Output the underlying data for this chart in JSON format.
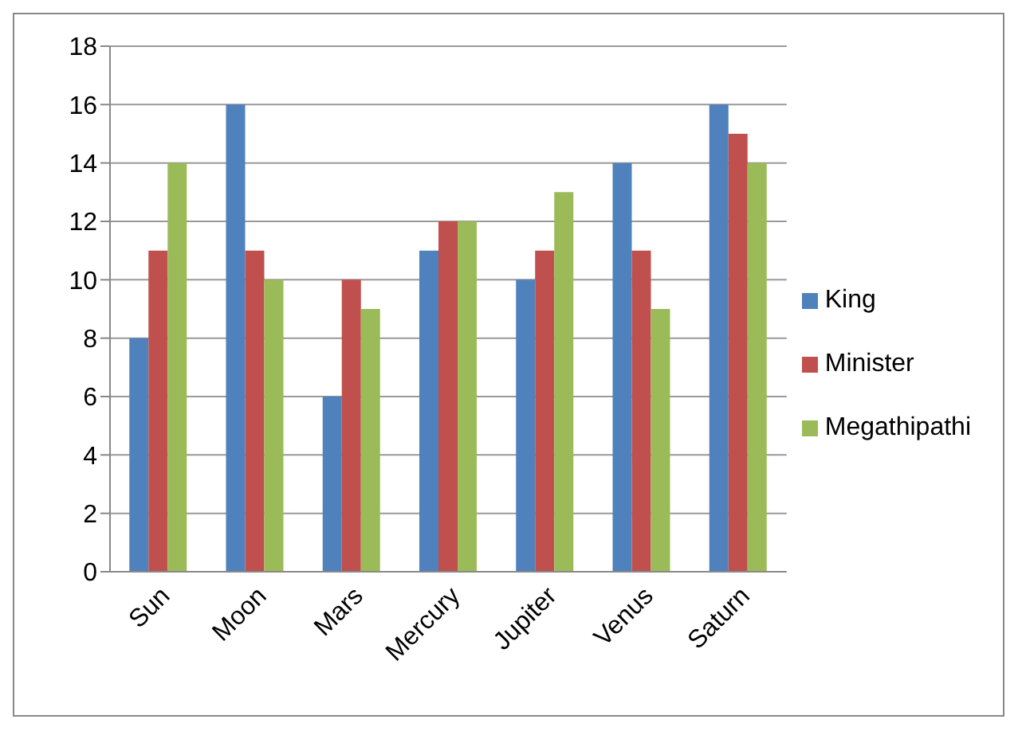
{
  "chart_data": {
    "type": "bar",
    "categories": [
      "Sun",
      "Moon",
      "Mars",
      "Mercury",
      "Jupiter",
      "Venus",
      "Saturn"
    ],
    "series": [
      {
        "name": "King",
        "color": "#4f81bd",
        "values": [
          8,
          16,
          6,
          11,
          10,
          14,
          16
        ]
      },
      {
        "name": "Minister",
        "color": "#c0504d",
        "values": [
          11,
          11,
          10,
          12,
          11,
          11,
          15
        ]
      },
      {
        "name": "Megathipathi",
        "color": "#9bbb59",
        "values": [
          14,
          10,
          9,
          12,
          13,
          9,
          14
        ]
      }
    ],
    "ylim": [
      0,
      18
    ],
    "yticks": [
      0,
      2,
      4,
      6,
      8,
      10,
      12,
      14,
      16,
      18
    ],
    "grid": "y",
    "legend": "right"
  }
}
